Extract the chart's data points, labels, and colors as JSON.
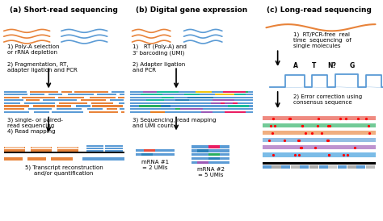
{
  "panel_a_title": "(a) Short-read sequencing",
  "panel_b_title": "(b) Digital gene expression",
  "panel_c_title": "(c) Long-read sequencing",
  "panel_a_steps_1": "1) Poly-A selection\nor rRNA depletion",
  "panel_a_steps_2": "2) Fragmentation, RT,\nadapter ligation and PCR",
  "panel_a_steps_34": "3) single- or paired-\nread sequencing\n4) Read mapping",
  "panel_a_steps_5": "5) Transcript reconstruction\nand/or quantification",
  "panel_b_step1": "1)   RT (Poly-A) and\n3' barcoding (UMI)",
  "panel_b_step2": "2) Adapter ligation\nand PCR",
  "panel_b_step3": "3) Sequencing, read mapping\nand UMI count",
  "panel_b_label1": "mRNA #1\n= 2 UMIs",
  "panel_b_label2": "mRNA #2\n= 5 UMIs",
  "panel_c_step1": "1)  RT/PCR-free  real\ntime  sequencing  of\nsingle molecules",
  "panel_c_step2": "2) Error correction using\nconsensus sequence",
  "orange": "#E8833A",
  "blue": "#5B9BD5",
  "dark": "#1A1A1A",
  "bg": "#FFFFFF",
  "title_fontsize": 6.5,
  "text_fontsize": 5.0,
  "nuc_labels": [
    [
      "A",
      0.32
    ],
    [
      "T",
      0.46
    ],
    [
      "N?",
      0.6
    ],
    [
      "G",
      0.76
    ]
  ],
  "umi_colors": [
    "#E74C3C",
    "#9B59B6",
    "#27AE60",
    "#E67E22",
    "#F1C40F",
    "#2980B9",
    "#E91E63",
    "#1ABC9C"
  ],
  "long_read_colors": [
    "#E74C3C",
    "#27AE60",
    "#E8833A",
    "#5B9BD5",
    "#9B59B6",
    "#3498DB"
  ]
}
